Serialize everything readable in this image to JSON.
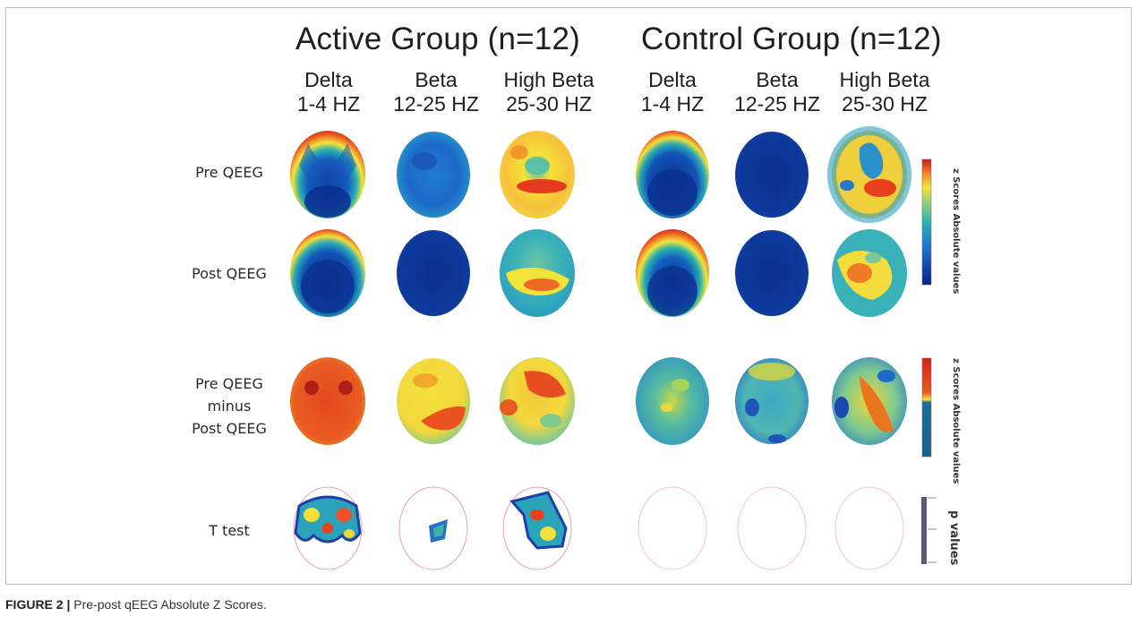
{
  "groups": [
    {
      "title": "Active Group (n=12)"
    },
    {
      "title": "Control Group (n=12)"
    }
  ],
  "bands": [
    {
      "name": "Delta",
      "range": "1-4 HZ"
    },
    {
      "name": "Beta",
      "range": "12-25 HZ"
    },
    {
      "name": "High Beta",
      "range": "25-30 HZ"
    },
    {
      "name": "Delta",
      "range": "1-4 HZ"
    },
    {
      "name": "Beta",
      "range": "12-25 HZ"
    },
    {
      "name": "High Beta",
      "range": "25-30 HZ"
    }
  ],
  "rows": {
    "pre": "Pre QEEG",
    "post": "Post QEEG",
    "diff_line1": "Pre QEEG",
    "diff_line2": "minus",
    "diff_line3": "Post QEEG",
    "ttest": "T test"
  },
  "colorbars": {
    "zscore_label": "z Scores Absolute values",
    "diff_label": "z Scores Absolute values",
    "p_label": "p values"
  },
  "caption": {
    "label": "FIGURE 2 |",
    "text": "Pre-post qEEG Absolute Z Scores."
  },
  "colors": {
    "low": "#0a2d8c",
    "mid": "#2aa6b8",
    "high": "#f6e53a",
    "max": "#d7261b",
    "ttest_outline": "#e8a0b4"
  }
}
